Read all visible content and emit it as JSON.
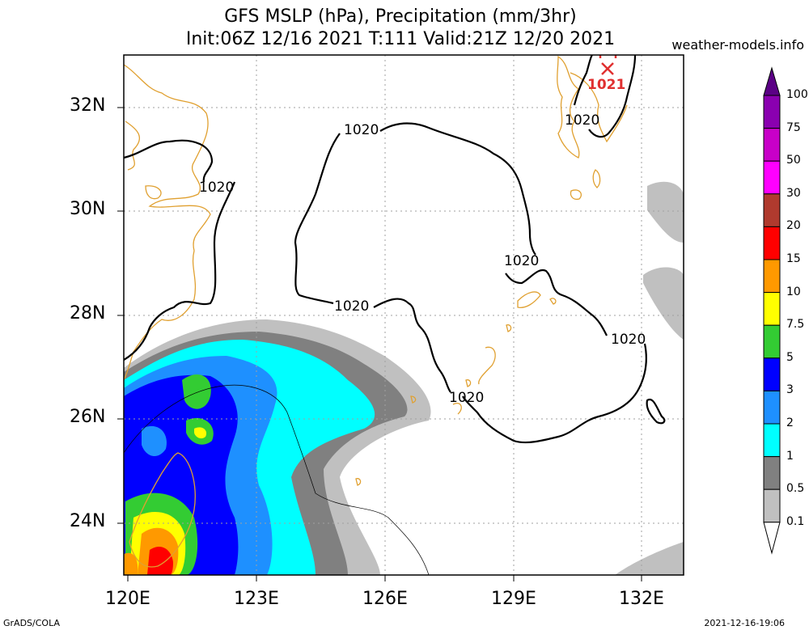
{
  "title_line1": "GFS MSLP (hPa), Precipitation (mm/3hr)",
  "title_line2": "Init:06Z 12/16 2021 T:111 Valid:21Z 12/20 2021",
  "site": "weather-models.info",
  "credit": "GrADS/COLA",
  "stamp": "2021-12-16-19:06",
  "lat_labels": [
    "32N",
    "30N",
    "28N",
    "26N",
    "24N"
  ],
  "lon_labels": [
    "120E",
    "123E",
    "126E",
    "129E",
    "132E"
  ],
  "isobar_label": "1020",
  "high_label": "1021",
  "legend": {
    "labels": [
      "100",
      "75",
      "50",
      "30",
      "20",
      "15",
      "10",
      "7.5",
      "5",
      "3",
      "2",
      "1",
      "0.5",
      "0.1"
    ],
    "colors": [
      "#5b0085",
      "#8a00b0",
      "#c800c8",
      "#ff00ff",
      "#b03a2e",
      "#ff0000",
      "#ff9900",
      "#ffff00",
      "#33cc33",
      "#0000ff",
      "#1e90ff",
      "#00ffff",
      "#808080",
      "#c0c0c0",
      "#ffffff"
    ]
  },
  "colors": {
    "coast": "#e0a030",
    "isobar": "#000000",
    "high": "#e03030"
  }
}
